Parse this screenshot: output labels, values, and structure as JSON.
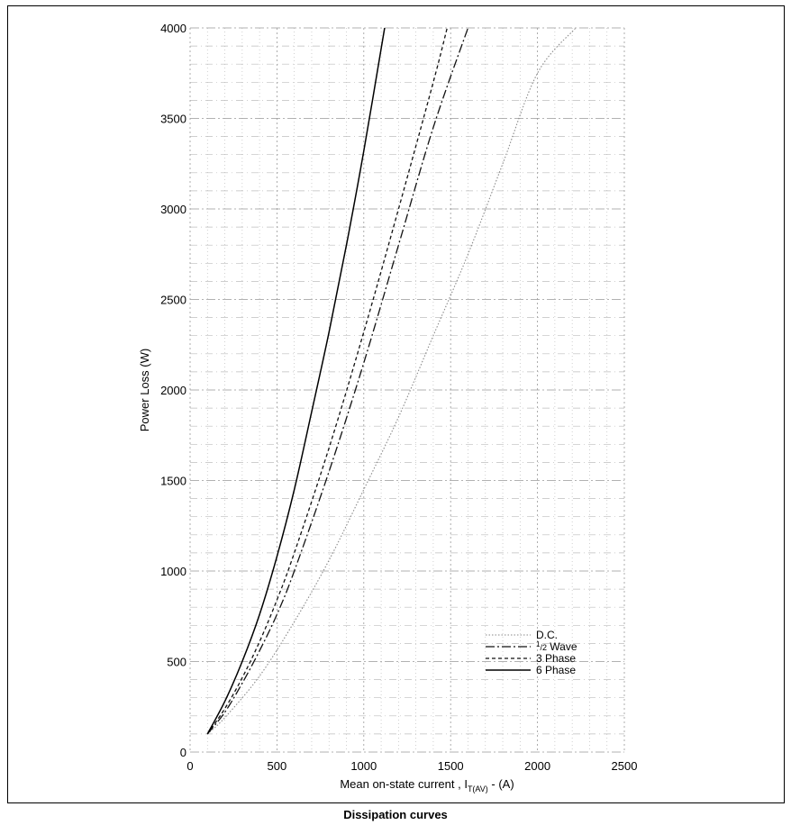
{
  "chart_data": {
    "type": "line",
    "title": "",
    "caption": "Dissipation curves",
    "xlabel": {
      "main": "Mean on-state current , I",
      "sub": "T(AV)",
      "suffix": " - (A)"
    },
    "ylabel": "Power Loss (W)",
    "xlim": [
      0,
      2500
    ],
    "ylim": [
      0,
      4000
    ],
    "x_ticks": [
      0,
      500,
      1000,
      1500,
      2000,
      2500
    ],
    "y_ticks": [
      0,
      500,
      1000,
      1500,
      2000,
      2500,
      3000,
      3500,
      4000
    ],
    "grid": true,
    "legend_position": "bottom-right",
    "series": [
      {
        "name": "D.C.",
        "style": "dotted",
        "points": [
          [
            100,
            100
          ],
          [
            200,
            190
          ],
          [
            400,
            420
          ],
          [
            600,
            720
          ],
          [
            800,
            1060
          ],
          [
            1000,
            1450
          ],
          [
            1200,
            1850
          ],
          [
            1400,
            2300
          ],
          [
            1600,
            2750
          ],
          [
            1800,
            3250
          ],
          [
            2000,
            3750
          ],
          [
            2220,
            4000
          ]
        ]
      },
      {
        "name": "Wave",
        "name_prefix": "1",
        "name_fraction": "/2",
        "style": "dash-dot",
        "points": [
          [
            100,
            100
          ],
          [
            200,
            220
          ],
          [
            300,
            380
          ],
          [
            400,
            560
          ],
          [
            500,
            760
          ],
          [
            600,
            1000
          ],
          [
            800,
            1550
          ],
          [
            1000,
            2150
          ],
          [
            1200,
            2800
          ],
          [
            1400,
            3450
          ],
          [
            1600,
            4000
          ]
        ]
      },
      {
        "name": "3 Phase",
        "style": "dashed",
        "points": [
          [
            100,
            100
          ],
          [
            200,
            240
          ],
          [
            300,
            410
          ],
          [
            400,
            610
          ],
          [
            500,
            840
          ],
          [
            600,
            1100
          ],
          [
            800,
            1680
          ],
          [
            1000,
            2320
          ],
          [
            1200,
            3000
          ],
          [
            1400,
            3700
          ],
          [
            1480,
            4000
          ]
        ]
      },
      {
        "name": "6 Phase",
        "style": "solid",
        "points": [
          [
            100,
            100
          ],
          [
            200,
            280
          ],
          [
            300,
            500
          ],
          [
            400,
            760
          ],
          [
            500,
            1080
          ],
          [
            600,
            1450
          ],
          [
            700,
            1880
          ],
          [
            800,
            2320
          ],
          [
            900,
            2800
          ],
          [
            1000,
            3320
          ],
          [
            1120,
            4000
          ]
        ]
      }
    ]
  }
}
